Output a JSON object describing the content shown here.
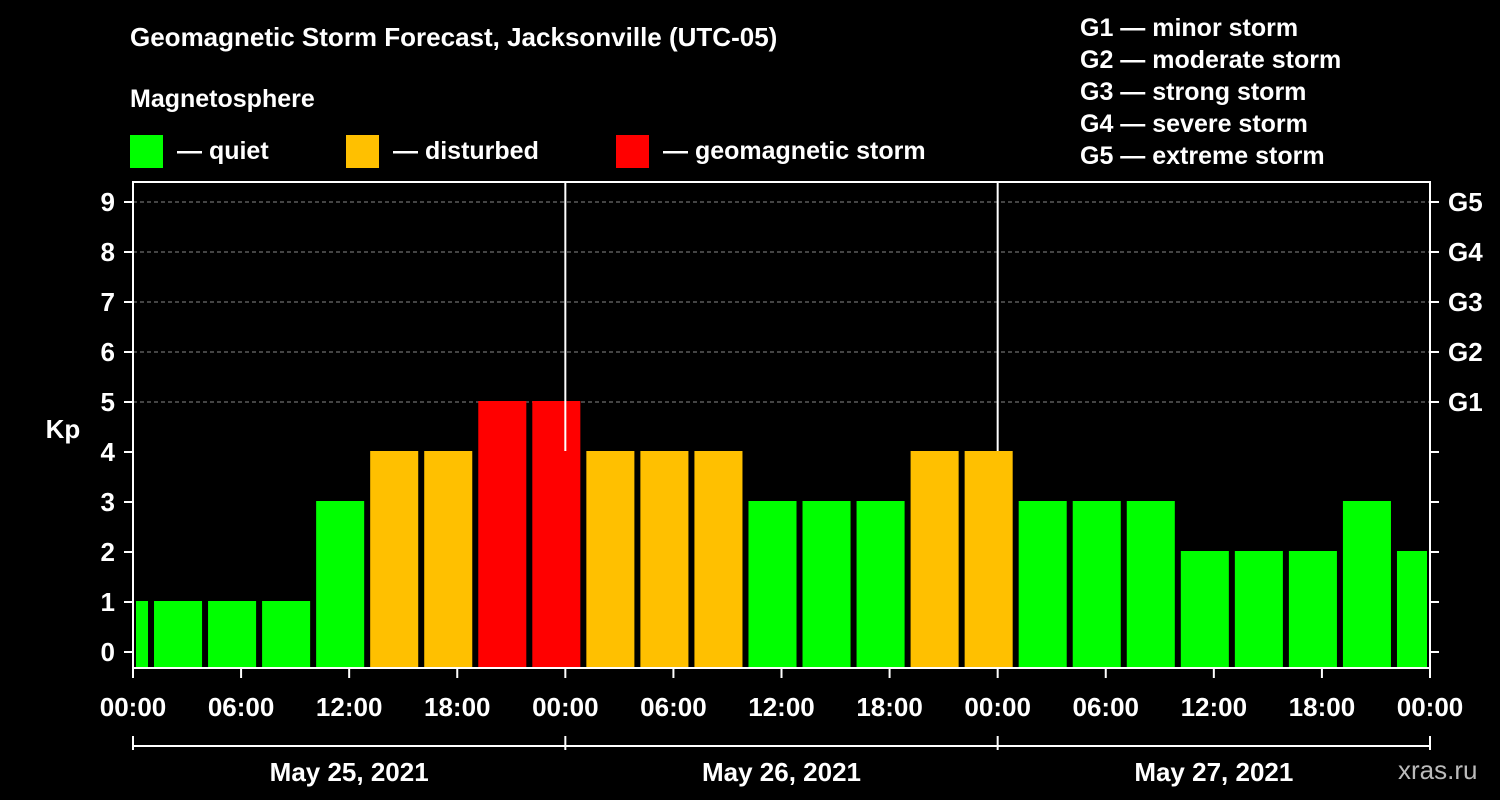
{
  "chart_data": {
    "type": "bar",
    "title": "Geomagnetic Storm Forecast, Jacksonville (UTC-05)",
    "ylabel": "Kp",
    "ylim": [
      0,
      9
    ],
    "y_ticks": [
      "0",
      "1",
      "2",
      "3",
      "4",
      "5",
      "6",
      "7",
      "8",
      "9"
    ],
    "right_axis_labels": [
      {
        "kp": 5,
        "label": "G1"
      },
      {
        "kp": 6,
        "label": "G2"
      },
      {
        "kp": 7,
        "label": "G3"
      },
      {
        "kp": 8,
        "label": "G4"
      },
      {
        "kp": 9,
        "label": "G5"
      }
    ],
    "legend": {
      "title": "Magnetosphere",
      "items": [
        {
          "label": "— quiet",
          "color": "#00ff00"
        },
        {
          "label": "— disturbed",
          "color": "#ffc000"
        },
        {
          "label": "— geomagnetic storm",
          "color": "#ff0000"
        }
      ]
    },
    "storm_scale": [
      "G1 — minor storm",
      "G2 — moderate storm",
      "G3 — strong storm",
      "G4 — severe storm",
      "G5 — extreme storm"
    ],
    "colors": {
      "quiet": "#00ff00",
      "disturbed": "#ffc000",
      "storm": "#ff0000",
      "grid": "#888888",
      "axis": "#ffffff"
    },
    "x_tick_labels": [
      "00:00",
      "06:00",
      "12:00",
      "18:00",
      "00:00",
      "06:00",
      "12:00",
      "18:00",
      "00:00",
      "06:00",
      "12:00",
      "18:00",
      "00:00"
    ],
    "x_range_hours": [
      0,
      72
    ],
    "days": [
      "May 25, 2021",
      "May 26, 2021",
      "May 27, 2021"
    ],
    "bars": [
      {
        "start_hour": 0,
        "end_hour": 1,
        "kp": 1
      },
      {
        "start_hour": 1,
        "end_hour": 4,
        "kp": 1
      },
      {
        "start_hour": 4,
        "end_hour": 7,
        "kp": 1
      },
      {
        "start_hour": 7,
        "end_hour": 10,
        "kp": 1
      },
      {
        "start_hour": 10,
        "end_hour": 13,
        "kp": 3
      },
      {
        "start_hour": 13,
        "end_hour": 16,
        "kp": 4
      },
      {
        "start_hour": 16,
        "end_hour": 19,
        "kp": 4
      },
      {
        "start_hour": 19,
        "end_hour": 22,
        "kp": 5
      },
      {
        "start_hour": 22,
        "end_hour": 25,
        "kp": 5
      },
      {
        "start_hour": 25,
        "end_hour": 28,
        "kp": 4
      },
      {
        "start_hour": 28,
        "end_hour": 31,
        "kp": 4
      },
      {
        "start_hour": 31,
        "end_hour": 34,
        "kp": 4
      },
      {
        "start_hour": 34,
        "end_hour": 37,
        "kp": 3
      },
      {
        "start_hour": 37,
        "end_hour": 40,
        "kp": 3
      },
      {
        "start_hour": 40,
        "end_hour": 43,
        "kp": 3
      },
      {
        "start_hour": 43,
        "end_hour": 46,
        "kp": 4
      },
      {
        "start_hour": 46,
        "end_hour": 49,
        "kp": 4
      },
      {
        "start_hour": 49,
        "end_hour": 52,
        "kp": 3
      },
      {
        "start_hour": 52,
        "end_hour": 55,
        "kp": 3
      },
      {
        "start_hour": 55,
        "end_hour": 58,
        "kp": 3
      },
      {
        "start_hour": 58,
        "end_hour": 61,
        "kp": 2
      },
      {
        "start_hour": 61,
        "end_hour": 64,
        "kp": 2
      },
      {
        "start_hour": 64,
        "end_hour": 67,
        "kp": 2
      },
      {
        "start_hour": 67,
        "end_hour": 70,
        "kp": 3
      },
      {
        "start_hour": 70,
        "end_hour": 72,
        "kp": 2
      }
    ]
  },
  "watermark": "xras.ru"
}
